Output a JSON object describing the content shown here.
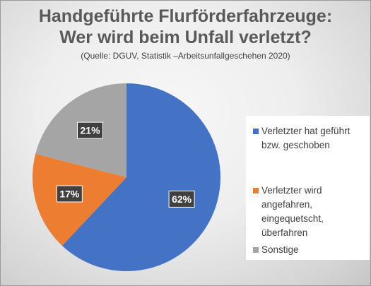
{
  "chart_data": {
    "type": "pie",
    "title": "Handgeführte Flurförderfahrzeuge:",
    "title_line2": "Wer wird beim Unfall verletzt?",
    "subtitle": "(Quelle: DGUV, Statistik –Arbeitsunfallgeschehen 2020)",
    "slices": [
      {
        "label": "Verletzter hat geführt bzw. geschoben",
        "value": 62,
        "data_label": "62%",
        "color": "#4472C4"
      },
      {
        "label": "Verletzter wird angefahren, eingequetscht, überfahren",
        "value": 17,
        "data_label": "17%",
        "color": "#ED7D31"
      },
      {
        "label": "Sonstige",
        "value": 21,
        "data_label": "21%",
        "color": "#A5A5A5"
      }
    ],
    "legend_lines": [
      [
        "Verletzter hat geführt",
        "bzw. geschoben"
      ],
      [
        "Verletzter wird",
        "angefahren,",
        "eingequetscht,",
        "überfahren"
      ],
      [
        "Sonstige"
      ]
    ],
    "start_angle": 0,
    "direction": "clockwise",
    "legend_position": "right"
  }
}
